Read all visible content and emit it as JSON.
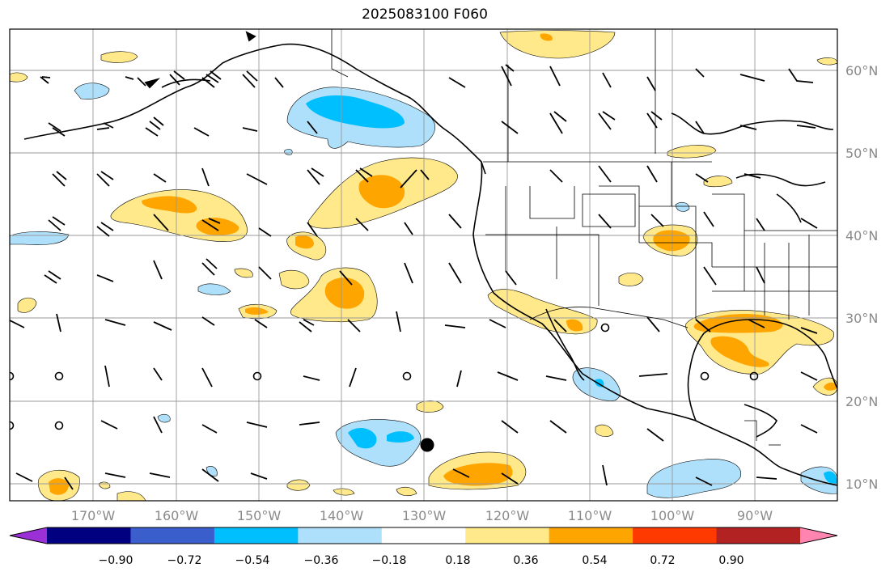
{
  "title": "2025083100 F060",
  "longitude_labels": [
    "170°W",
    "160°W",
    "150°W",
    "140°W",
    "130°W",
    "120°W",
    "110°W",
    "100°W",
    "90°W"
  ],
  "latitude_labels": [
    "60°N",
    "50°N",
    "40°N",
    "30°N",
    "20°N",
    "10°N"
  ],
  "colorbar": {
    "colors": [
      "#9b30d6",
      "#000080",
      "#3a5fcd",
      "#00bfff",
      "#aee0fb",
      "#ffffff",
      "#ffe98a",
      "#ffa500",
      "#ff3a00",
      "#b22222",
      "#ff85b0"
    ],
    "tick_labels": [
      "−0.90",
      "−0.72",
      "−0.54",
      "−0.36",
      "−0.18",
      "0.18",
      "0.36",
      "0.54",
      "0.72",
      "0.90"
    ]
  }
}
